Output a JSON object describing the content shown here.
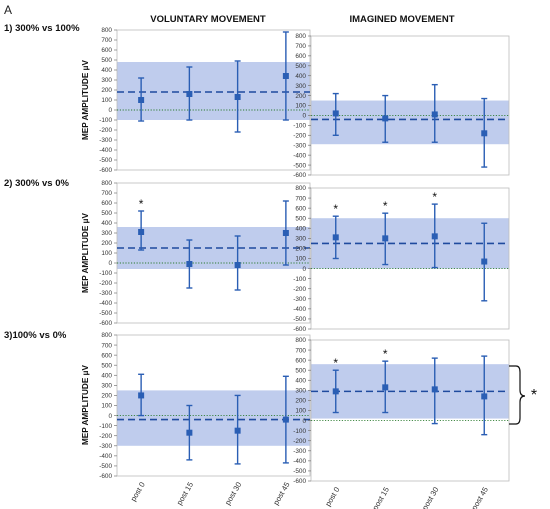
{
  "figure": {
    "panel_letter": "A",
    "col_titles": [
      "VOLUNTARY MOVEMENT",
      "IMAGINED MOVEMENT"
    ],
    "row_titles": [
      "1) 300% vs 100%",
      "2) 300% vs 0%",
      "3)100% vs 0%"
    ],
    "ylabel": "MEP AMPLITUDE  μV",
    "bracket_star": "*",
    "colors": {
      "band": "#b4c3ea",
      "marker": "#2a5eb4",
      "dashed": "#1f4a9e",
      "dotted": "#2e7d32"
    }
  },
  "chart_data": [
    {
      "type": "scatter",
      "row": 1,
      "col": "voluntary",
      "categories": [
        "post 0",
        "post 15",
        "post 30",
        "post 45"
      ],
      "show_xticks": false,
      "ylim": [
        -600,
        800
      ],
      "yticks": [
        -600,
        -500,
        -400,
        -300,
        -200,
        -100,
        0,
        100,
        200,
        300,
        400,
        500,
        600,
        700,
        800
      ],
      "values": [
        100,
        160,
        130,
        340
      ],
      "err_low": [
        -110,
        -100,
        -220,
        -100
      ],
      "err_high": [
        320,
        430,
        490,
        780
      ],
      "mean": 180,
      "band": [
        -100,
        480
      ],
      "significant": [
        false,
        false,
        false,
        false
      ]
    },
    {
      "type": "scatter",
      "row": 1,
      "col": "imagined",
      "categories": [
        "post 0",
        "post 15",
        "post 30",
        "post 45"
      ],
      "show_xticks": false,
      "ylim": [
        -600,
        800
      ],
      "yticks": [
        -600,
        -500,
        -400,
        -300,
        -200,
        -100,
        0,
        100,
        200,
        300,
        400,
        500,
        600,
        700,
        800
      ],
      "values": [
        20,
        -30,
        10,
        -180
      ],
      "err_low": [
        -200,
        -270,
        -270,
        -520
      ],
      "err_high": [
        220,
        200,
        310,
        170
      ],
      "mean": -40,
      "band": [
        -290,
        150
      ],
      "significant": [
        false,
        false,
        false,
        false
      ]
    },
    {
      "type": "scatter",
      "row": 2,
      "col": "voluntary",
      "categories": [
        "post 0",
        "post 15",
        "post 30",
        "post 45"
      ],
      "show_xticks": false,
      "ylim": [
        -600,
        800
      ],
      "yticks": [
        -600,
        -500,
        -400,
        -300,
        -200,
        -100,
        0,
        100,
        200,
        300,
        400,
        500,
        600,
        700,
        800
      ],
      "values": [
        310,
        -10,
        -20,
        300
      ],
      "err_low": [
        130,
        -250,
        -270,
        -20
      ],
      "err_high": [
        520,
        230,
        270,
        620
      ],
      "mean": 150,
      "band": [
        -60,
        360
      ],
      "significant": [
        true,
        false,
        false,
        false
      ]
    },
    {
      "type": "scatter",
      "row": 2,
      "col": "imagined",
      "categories": [
        "post 0",
        "post 15",
        "post 30",
        "post 45"
      ],
      "show_xticks": false,
      "ylim": [
        -600,
        800
      ],
      "yticks": [
        -600,
        -500,
        -400,
        -300,
        -200,
        -100,
        0,
        100,
        200,
        300,
        400,
        500,
        600,
        700,
        800
      ],
      "values": [
        310,
        300,
        320,
        70
      ],
      "err_low": [
        100,
        40,
        10,
        -320
      ],
      "err_high": [
        520,
        550,
        640,
        450
      ],
      "mean": 250,
      "band": [
        0,
        500
      ],
      "significant": [
        true,
        true,
        true,
        false
      ]
    },
    {
      "type": "scatter",
      "row": 3,
      "col": "voluntary",
      "categories": [
        "post 0",
        "post 15",
        "post 30",
        "post 45"
      ],
      "show_xticks": true,
      "ylim": [
        -600,
        800
      ],
      "yticks": [
        -600,
        -500,
        -400,
        -300,
        -200,
        -100,
        0,
        100,
        200,
        300,
        400,
        500,
        600,
        700,
        800
      ],
      "values": [
        200,
        -170,
        -150,
        -40
      ],
      "err_low": [
        0,
        -440,
        -480,
        -470
      ],
      "err_high": [
        410,
        100,
        200,
        390
      ],
      "mean": -40,
      "band": [
        -300,
        250
      ],
      "significant": [
        false,
        false,
        false,
        false
      ]
    },
    {
      "type": "scatter",
      "row": 3,
      "col": "imagined",
      "categories": [
        "post 0",
        "post 15",
        "post 30",
        "post 45"
      ],
      "show_xticks": true,
      "ylim": [
        -600,
        800
      ],
      "yticks": [
        -600,
        -500,
        -400,
        -300,
        -200,
        -100,
        0,
        100,
        200,
        300,
        400,
        500,
        600,
        700,
        800
      ],
      "values": [
        290,
        330,
        310,
        240
      ],
      "err_low": [
        80,
        80,
        -30,
        -140
      ],
      "err_high": [
        500,
        590,
        620,
        640
      ],
      "mean": 290,
      "band": [
        20,
        560
      ],
      "significant": [
        true,
        true,
        false,
        false
      ]
    }
  ]
}
